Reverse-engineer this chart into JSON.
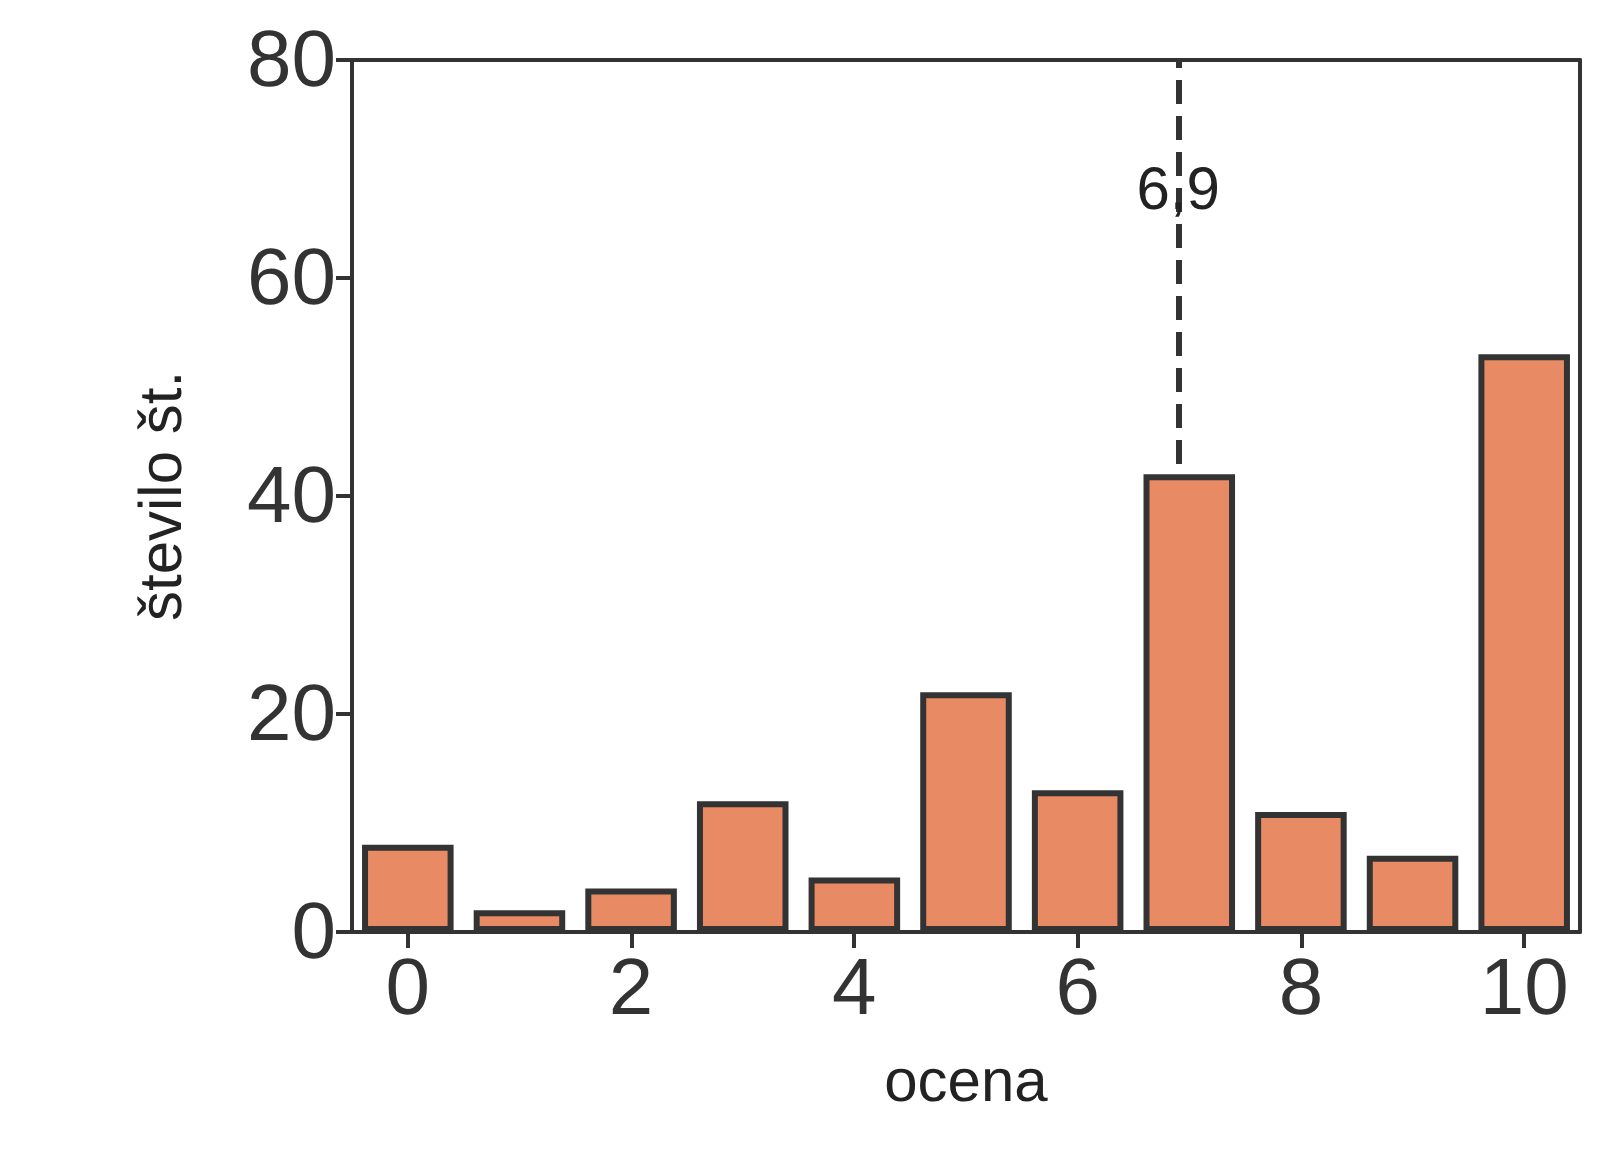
{
  "chart_data": {
    "type": "bar",
    "xlabel": "ocena",
    "ylabel": "število št.",
    "x": [
      0,
      1,
      2,
      3,
      4,
      5,
      6,
      7,
      8,
      9,
      10
    ],
    "values": [
      8,
      2,
      4,
      12,
      5,
      22,
      13,
      42,
      11,
      7,
      53
    ],
    "color": "#e88a64",
    "xlim": [
      -0.5,
      10.5
    ],
    "xticks": [
      0,
      2,
      4,
      6,
      8,
      10
    ],
    "ylim": [
      0,
      80
    ],
    "yticks": [
      0,
      20,
      40,
      60,
      80
    ],
    "ref_lines": [
      {
        "axis": "x",
        "value": 6.9,
        "label": "6,9",
        "line_style": "dashed",
        "color": "#333333"
      }
    ],
    "grid": false
  }
}
